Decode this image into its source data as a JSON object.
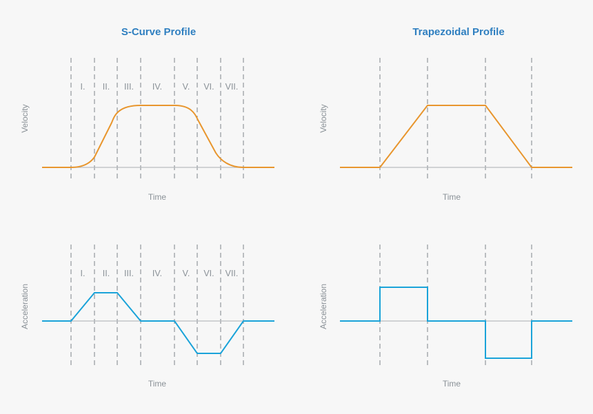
{
  "colors": {
    "velocity": "#e8962e",
    "acceleration": "#1aa3d9",
    "title": "#2f7fc0"
  },
  "phases": [
    "I.",
    "II.",
    "III.",
    "IV.",
    "V.",
    "VI.",
    "VII."
  ],
  "panels": {
    "scurve_velocity": {
      "title": "S-Curve Profile",
      "ylabel": "Velocity",
      "xlabel": "Time"
    },
    "trap_velocity": {
      "title": "Trapezoidal Profile",
      "ylabel": "Velocity",
      "xlabel": "Time"
    },
    "scurve_acceleration": {
      "ylabel": "Acceleration",
      "xlabel": "Time"
    },
    "trap_acceleration": {
      "ylabel": "Acceleration",
      "xlabel": "Time"
    }
  }
}
